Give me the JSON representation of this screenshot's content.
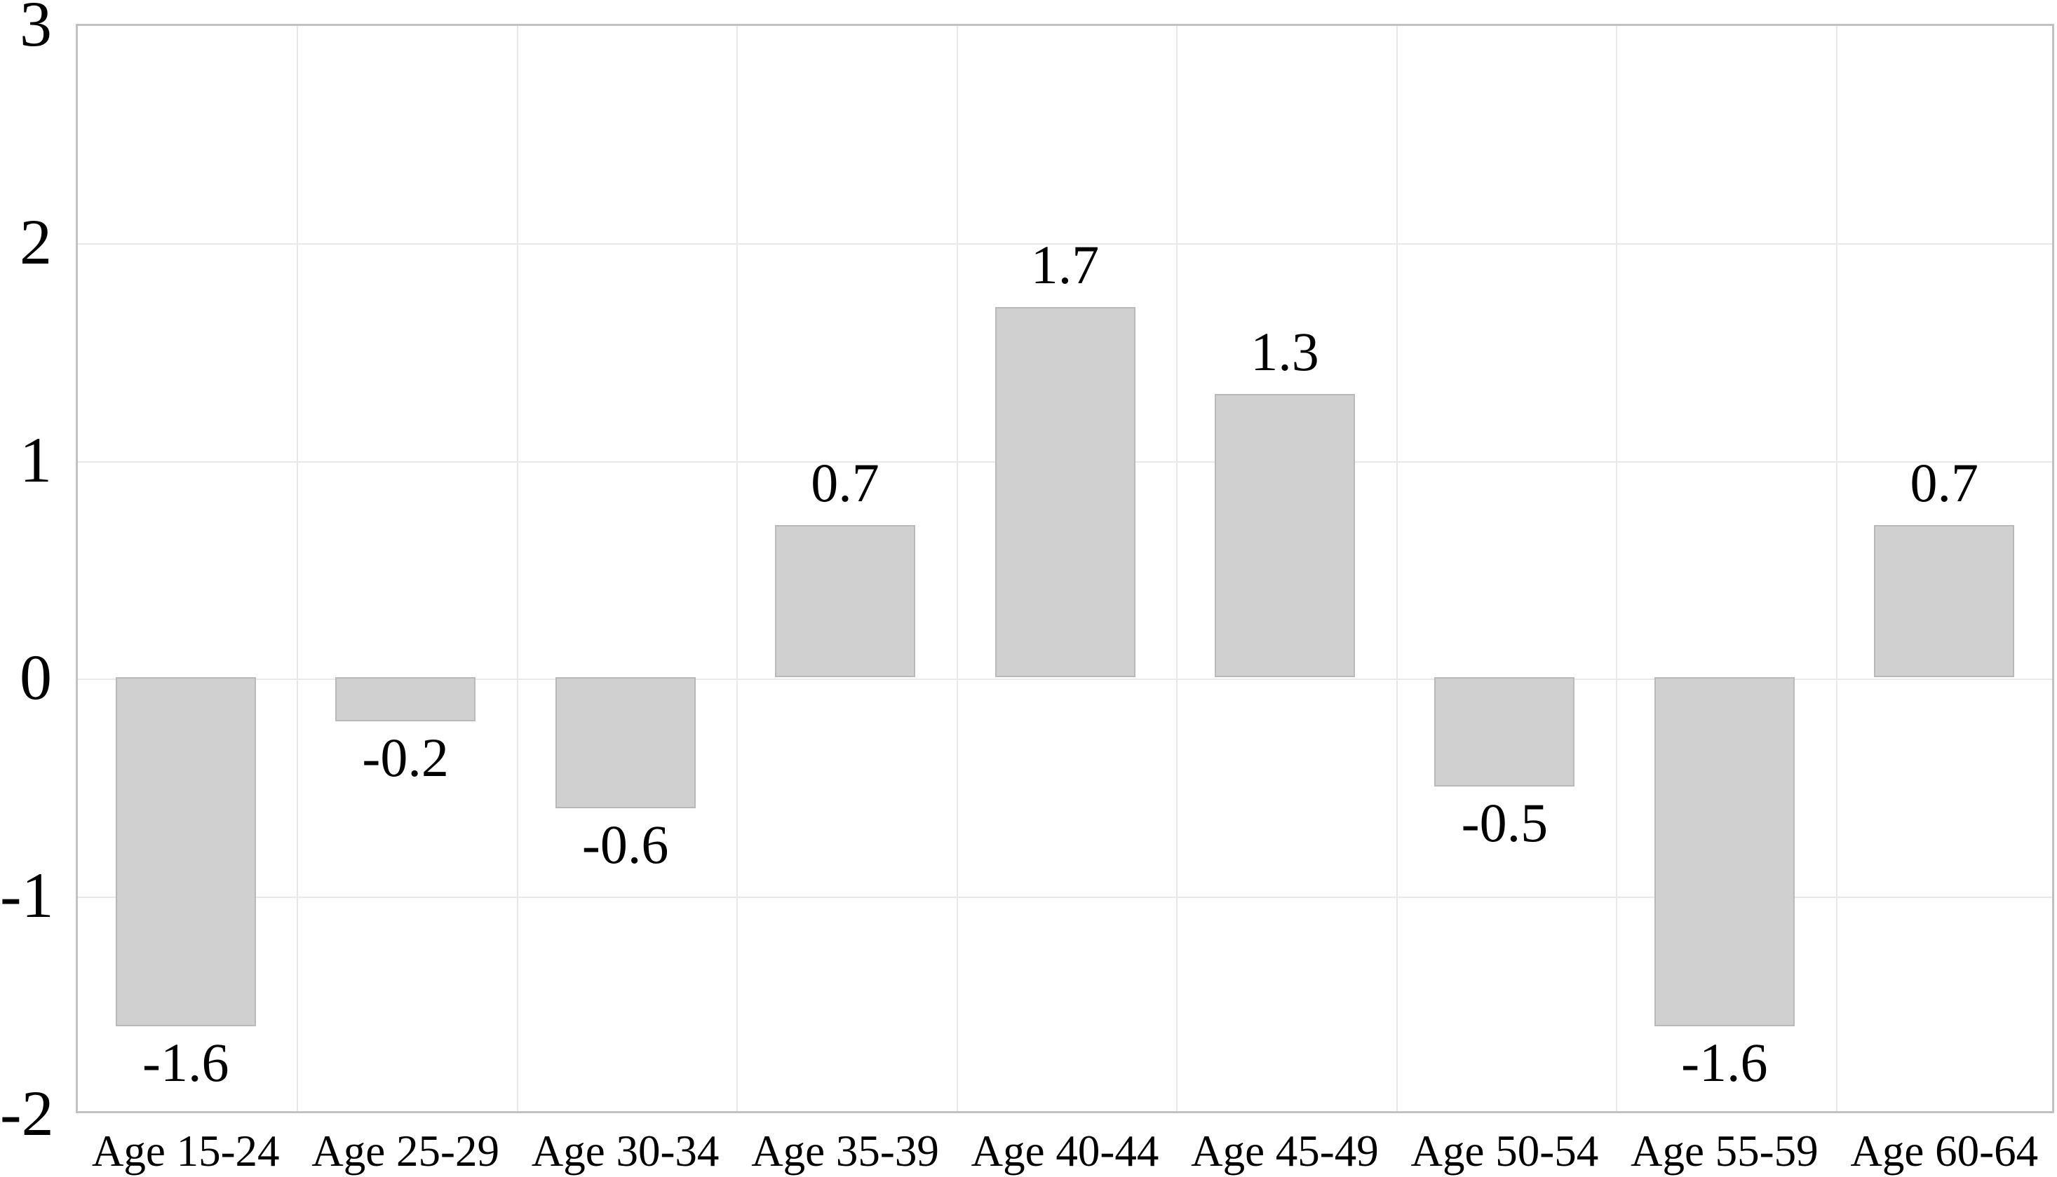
{
  "chart_data": {
    "type": "bar",
    "title": "",
    "xlabel": "",
    "ylabel": "",
    "categories": [
      "Age 15-24",
      "Age 25-29",
      "Age 30-34",
      "Age 35-39",
      "Age 40-44",
      "Age 45-49",
      "Age 50-54",
      "Age 55-59",
      "Age 60-64"
    ],
    "values": [
      -1.6,
      -0.2,
      -0.6,
      0.7,
      1.7,
      1.3,
      -0.5,
      -1.6,
      0.7
    ],
    "bar_labels": [
      "-1.6",
      "-0.2",
      "-0.6",
      "0.7",
      "1.7",
      "1.3",
      "-0.5",
      "-1.6",
      "0.7"
    ],
    "ylim": [
      -2,
      3
    ],
    "yticks": [
      {
        "value": 3,
        "label": "3"
      },
      {
        "value": 2,
        "label": "2"
      },
      {
        "value": 1,
        "label": "1"
      },
      {
        "value": 0,
        "label": "0"
      },
      {
        "value": -1,
        "label": "-1"
      },
      {
        "value": -2,
        "label": "-2"
      }
    ],
    "grid": true,
    "legend": "none",
    "colors": {
      "bar_fill": "#d0d0d0",
      "bar_border": "#b9b9b9",
      "gridline": "#e9e9e9",
      "plot_border": "#c2c2c2",
      "text": "#000000",
      "background": "#ffffff"
    }
  }
}
